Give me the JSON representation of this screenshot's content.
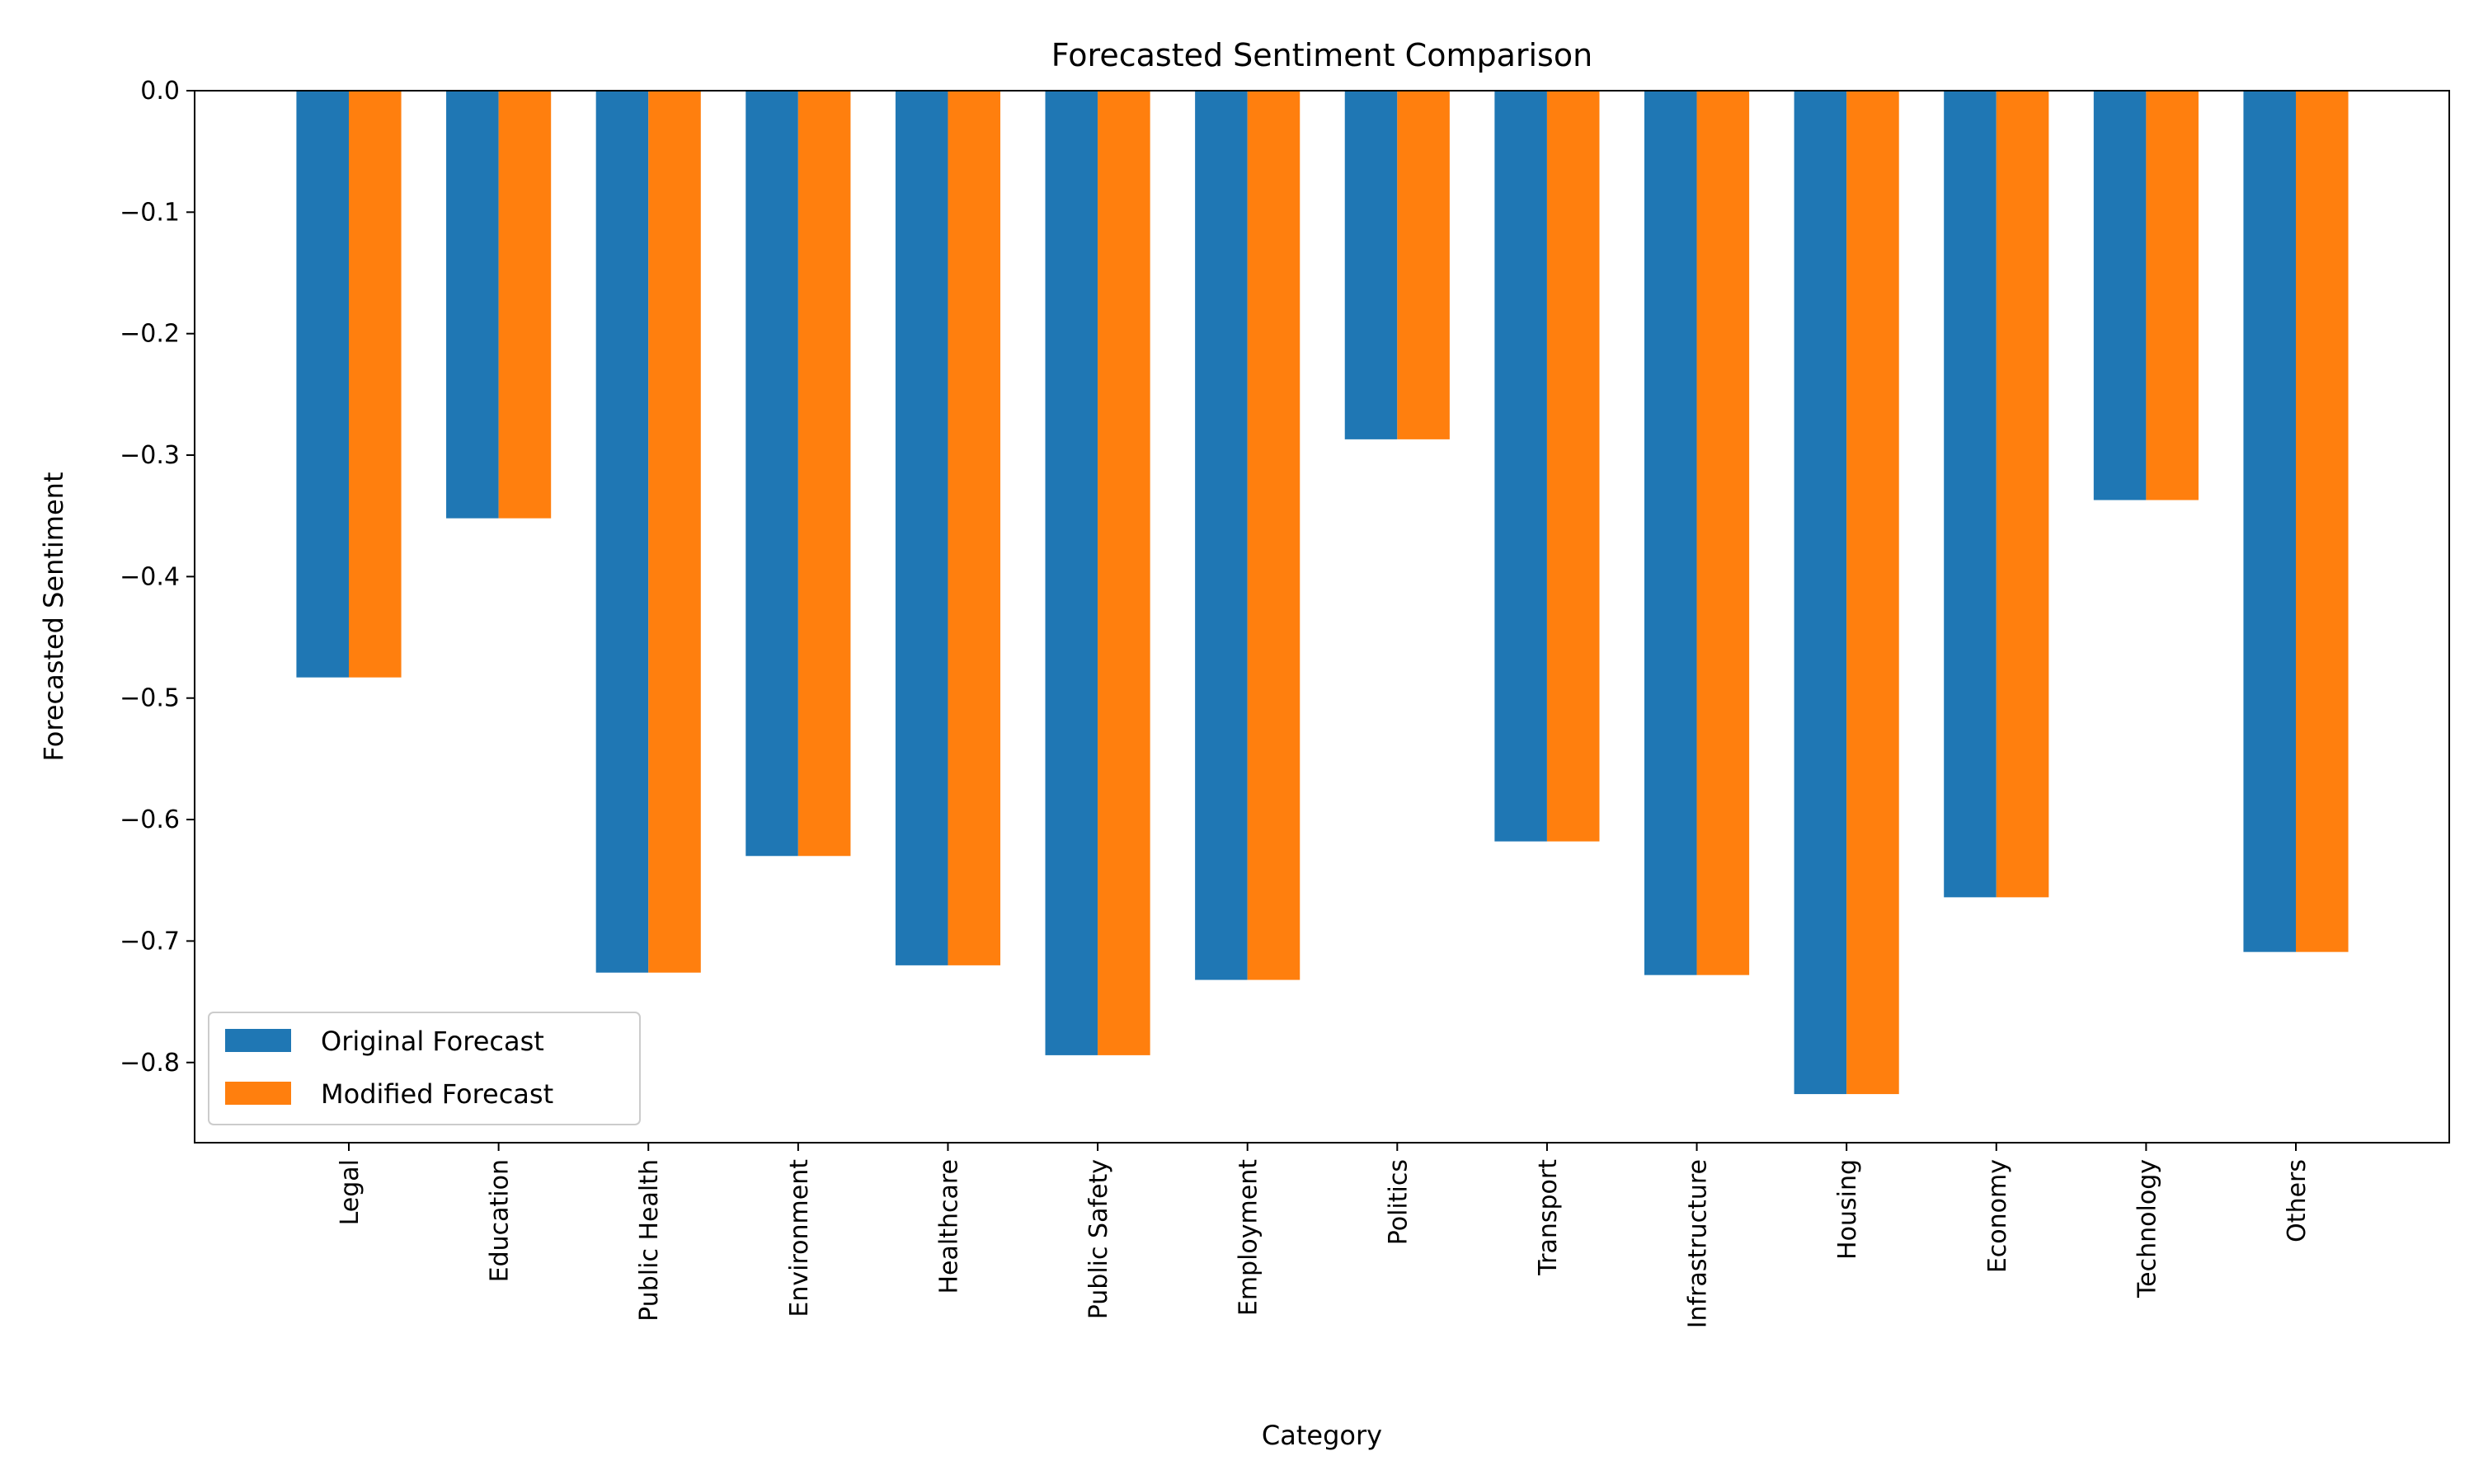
{
  "chart_data": {
    "type": "bar",
    "title": "Forecasted Sentiment Comparison",
    "xlabel": "Category",
    "ylabel": "Forecasted Sentiment",
    "categories": [
      "Legal",
      "Education",
      "Public Health",
      "Environment",
      "Healthcare",
      "Public Safety",
      "Employment",
      "Politics",
      "Transport",
      "Infrastructure",
      "Housing",
      "Economy",
      "Technology",
      "Others"
    ],
    "series": [
      {
        "name": "Original Forecast",
        "color": "#1f77b4",
        "values": [
          -0.483,
          -0.352,
          -0.726,
          -0.63,
          -0.72,
          -0.794,
          -0.732,
          -0.287,
          -0.618,
          -0.728,
          -0.826,
          -0.664,
          -0.337,
          -0.709
        ]
      },
      {
        "name": "Modified Forecast",
        "color": "#ff7f0e",
        "values": [
          -0.483,
          -0.352,
          -0.726,
          -0.63,
          -0.72,
          -0.794,
          -0.732,
          -0.287,
          -0.618,
          -0.728,
          -0.826,
          -0.664,
          -0.337,
          -0.709
        ]
      }
    ],
    "ylim": [
      -0.866,
      0.0
    ],
    "yticks": [
      0.0,
      -0.1,
      -0.2,
      -0.3,
      -0.4,
      -0.5,
      -0.6,
      -0.7,
      -0.8
    ],
    "ytick_labels": [
      "0.0",
      "−0.1",
      "−0.2",
      "−0.3",
      "−0.4",
      "−0.5",
      "−0.6",
      "−0.7",
      "−0.8"
    ],
    "grid": false,
    "legend_position": "lower-left"
  }
}
